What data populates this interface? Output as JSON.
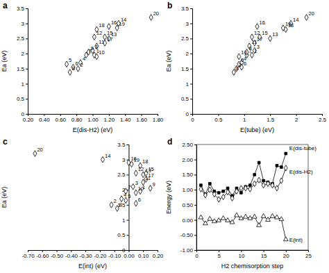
{
  "chart_data": [
    {
      "type": "scatter",
      "title": "a",
      "x_label": "E(dis-H2) (eV)",
      "y_label": "Ea (eV)",
      "marker": "diamond",
      "color": "#000000",
      "x": [
        1.02,
        0.82,
        1.0,
        0.85,
        0.68,
        0.76,
        0.92,
        0.72,
        0.95,
        1.05,
        1.05,
        1.02,
        1.2,
        1.32,
        1.15,
        1.2,
        1.15,
        1.05,
        1.3,
        1.72
      ],
      "values": [
        1.95,
        1.5,
        2.1,
        1.7,
        1.65,
        1.55,
        1.95,
        1.38,
        2.05,
        1.9,
        2.25,
        2.55,
        2.5,
        3.0,
        2.55,
        2.9,
        2.35,
        2.8,
        2.85,
        3.2
      ],
      "point_labels": [
        "1",
        "2",
        "3",
        "4",
        "5",
        "6",
        "7",
        "8",
        "9",
        "10",
        "11",
        "12",
        "13",
        "14",
        "15",
        "16",
        "17",
        "18",
        "19",
        "20"
      ],
      "xlim": [
        0.2,
        1.8
      ],
      "xticks": [
        {
          "value": 0.2,
          "label": "0.20"
        },
        {
          "value": 0.4,
          "label": "0.40"
        },
        {
          "value": 0.6,
          "label": "0.60"
        },
        {
          "value": 0.8,
          "label": "0.80"
        },
        {
          "value": 1.0,
          "label": "1.00"
        },
        {
          "value": 1.2,
          "label": "1.20"
        },
        {
          "value": 1.4,
          "label": "1.40"
        },
        {
          "value": 1.6,
          "label": "1.60"
        },
        {
          "value": 1.8,
          "label": "1.80"
        }
      ],
      "ylim": [
        0,
        3.5
      ],
      "yticks": [
        0,
        0.5,
        1,
        1.5,
        2,
        2.5,
        3,
        3.5
      ],
      "grid": false
    },
    {
      "type": "scatter",
      "title": "b",
      "x_label": "E(tube) (eV)",
      "y_label": "Ea (eV)",
      "marker": "diamond",
      "color": "#000000",
      "x": [
        1.15,
        0.85,
        1.2,
        0.95,
        0.9,
        0.95,
        1.05,
        0.8,
        1.05,
        0.9,
        1.1,
        1.15,
        1.5,
        1.9,
        1.3,
        1.25,
        1.2,
        1.8,
        1.75,
        2.2
      ],
      "values": [
        1.95,
        1.5,
        2.1,
        1.7,
        1.65,
        1.55,
        1.95,
        1.38,
        2.05,
        1.9,
        2.25,
        2.55,
        2.5,
        3.0,
        2.55,
        2.9,
        2.35,
        2.8,
        2.85,
        3.2
      ],
      "point_labels": [
        "1",
        "2",
        "3",
        "4",
        "5",
        "6",
        "7",
        "8",
        "9",
        "10",
        "11",
        "12",
        "13",
        "14",
        "15",
        "16",
        "17",
        "18",
        "19",
        "20"
      ],
      "xlim": [
        0,
        2.5
      ],
      "xticks": [
        0,
        0.5,
        1,
        1.5,
        2,
        2.5
      ],
      "ylim": [
        0,
        3.5
      ],
      "yticks": [
        0,
        0.5,
        1,
        1.5,
        2,
        2.5,
        3,
        3.5
      ],
      "grid": false
    },
    {
      "type": "scatter",
      "title": "c",
      "x_label": "E(int) (eV)",
      "y_label": "Ea (eV)",
      "marker": "diamond",
      "color": "#000000",
      "x": [
        0.08,
        -0.12,
        0.03,
        -0.05,
        -0.02,
        0.05,
        -0.02,
        -0.08,
        0.15,
        0.05,
        0.1,
        0.05,
        0.1,
        -0.18,
        0.12,
        0.0,
        0.12,
        0.08,
        0.02,
        -0.65
      ],
      "values": [
        1.95,
        1.5,
        2.1,
        1.7,
        1.65,
        1.55,
        1.95,
        1.38,
        2.05,
        1.9,
        2.25,
        2.55,
        2.5,
        3.0,
        2.55,
        2.9,
        2.35,
        2.8,
        2.85,
        3.2
      ],
      "point_labels": [
        "1",
        "2",
        "3",
        "4",
        "5",
        "6",
        "7",
        "8",
        "9",
        "10",
        "11",
        "12",
        "13",
        "14",
        "15",
        "16",
        "17",
        "18",
        "19",
        "20"
      ],
      "xlim": [
        -0.7,
        0.2
      ],
      "xticks": [
        {
          "value": -0.7,
          "label": "-0.70"
        },
        {
          "value": -0.6,
          "label": "-0.60"
        },
        {
          "value": -0.5,
          "label": "-0.50"
        },
        {
          "value": -0.4,
          "label": "-0.40"
        },
        {
          "value": -0.3,
          "label": "-0.30"
        },
        {
          "value": -0.2,
          "label": "-0.20"
        },
        {
          "value": -0.1,
          "label": "-0.10"
        },
        {
          "value": 0,
          "label": "0.00"
        },
        {
          "value": 0.1,
          "label": "0.10"
        },
        {
          "value": 0.2,
          "label": "0.20"
        }
      ],
      "ylim": [
        0,
        3.5
      ],
      "yticks": [
        0,
        0.5,
        1,
        1.5,
        2,
        2.5,
        3,
        3.5
      ],
      "grid": false
    },
    {
      "type": "line",
      "title": "d",
      "x_label": "H2 chemisorption step",
      "y_label": "Energy (eV)",
      "x": [
        1,
        2,
        3,
        4,
        5,
        6,
        7,
        8,
        9,
        10,
        11,
        12,
        13,
        14,
        15,
        16,
        17,
        18,
        19,
        20
      ],
      "series": [
        {
          "name": "E(dis-tube)",
          "color": "#000000",
          "marker": "square",
          "values": [
            1.15,
            0.85,
            1.2,
            0.95,
            0.9,
            0.95,
            1.05,
            0.8,
            1.05,
            0.9,
            1.1,
            1.15,
            1.5,
            1.9,
            1.3,
            1.25,
            1.2,
            1.8,
            1.75,
            2.2
          ]
        },
        {
          "name": "E(dis-H2)",
          "color": "#000000",
          "marker": "diamond",
          "values": [
            1.02,
            0.82,
            1.0,
            0.85,
            0.68,
            0.76,
            0.92,
            0.72,
            0.95,
            1.05,
            1.05,
            1.02,
            1.2,
            1.32,
            1.15,
            1.2,
            1.15,
            1.05,
            1.3,
            1.72
          ]
        },
        {
          "name": "E(int)",
          "color": "#000000",
          "marker": "triangle",
          "values": [
            0.08,
            -0.12,
            0.03,
            -0.05,
            -0.02,
            0.05,
            -0.02,
            -0.08,
            0.15,
            0.05,
            0.1,
            0.05,
            0.1,
            -0.18,
            0.12,
            0.0,
            0.12,
            0.08,
            0.02,
            -0.65
          ]
        }
      ],
      "xlim": [
        0,
        25
      ],
      "xticks": [
        0,
        5,
        10,
        15,
        20,
        25
      ],
      "ylim": [
        -1,
        2.5
      ],
      "yticks": [
        {
          "value": -1,
          "label": "-1.00"
        },
        {
          "value": -0.5,
          "label": "-0.50"
        },
        {
          "value": 0,
          "label": "0.00"
        },
        {
          "value": 0.5,
          "label": "0.50"
        },
        {
          "value": 1,
          "label": "1.00"
        },
        {
          "value": 1.5,
          "label": "1.50"
        },
        {
          "value": 2,
          "label": "2.00"
        },
        {
          "value": 2.5,
          "label": "2.50"
        }
      ],
      "grid": false
    }
  ]
}
